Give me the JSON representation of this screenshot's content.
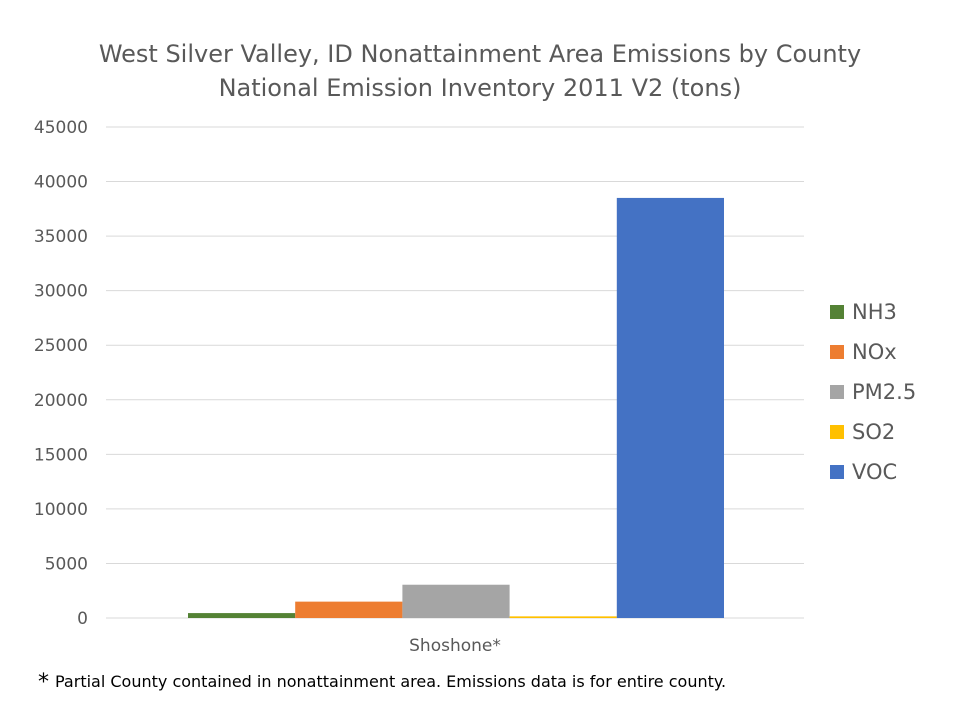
{
  "chart_data": {
    "type": "bar",
    "title": "West Silver Valley, ID Nonattainment Area Emissions by County",
    "subtitle": "National Emission Inventory 2011 V2 (tons)",
    "categories": [
      "Shoshone*"
    ],
    "series": [
      {
        "name": "NH3",
        "values": [
          450
        ],
        "color": "#548235"
      },
      {
        "name": "NOx",
        "values": [
          1500
        ],
        "color": "#ED7D31"
      },
      {
        "name": "PM2.5",
        "values": [
          3050
        ],
        "color": "#A5A5A5"
      },
      {
        "name": "SO2",
        "values": [
          150
        ],
        "color": "#FFC000"
      },
      {
        "name": "VOC",
        "values": [
          38500
        ],
        "color": "#4472C4"
      }
    ],
    "ylim": [
      0,
      45000
    ],
    "yticks": [
      0,
      5000,
      10000,
      15000,
      20000,
      25000,
      30000,
      35000,
      40000,
      45000
    ],
    "xlabel": "",
    "ylabel": "",
    "grid": true,
    "legend_position": "right"
  },
  "footnote": {
    "marker": "*",
    "text": "Partial County contained in nonattainment area.  Emissions data is for entire county."
  }
}
